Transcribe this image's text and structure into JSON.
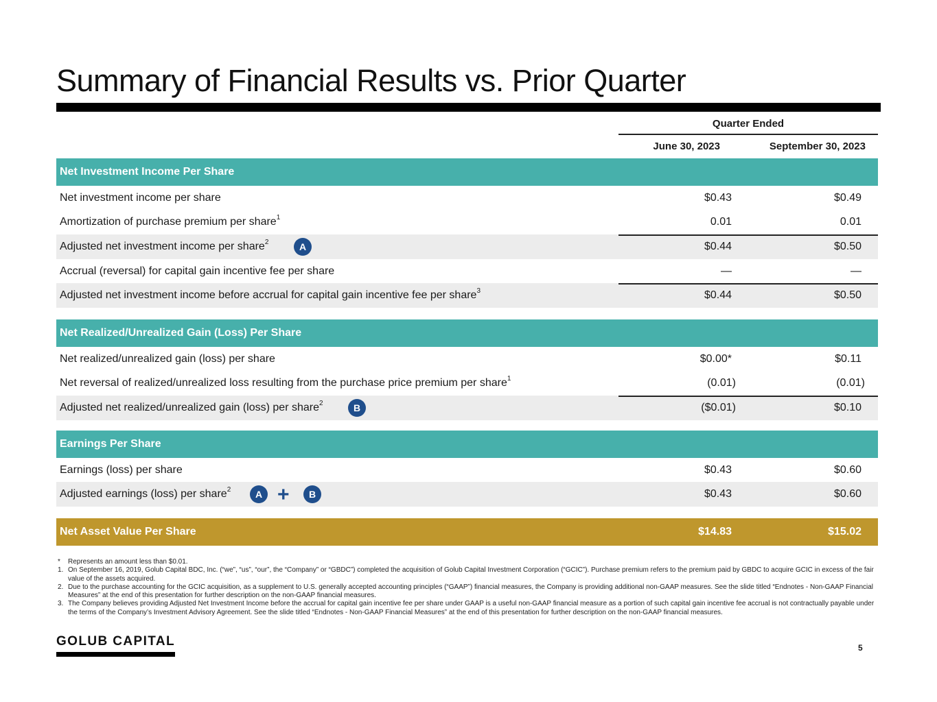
{
  "title": "Summary of Financial Results vs. Prior Quarter",
  "table": {
    "group_header": "Quarter Ended",
    "columns": [
      "June 30, 2023",
      "September 30, 2023"
    ]
  },
  "sections": [
    {
      "header": "Net Investment Income Per Share",
      "rows": [
        {
          "label": "Net investment income per share",
          "sup": "",
          "v1": "$0.43",
          "v2": "$0.49"
        },
        {
          "label": "Amortization of purchase premium per share",
          "sup": "1",
          "v1": "0.01",
          "v2": "0.01"
        },
        {
          "label": "Adjusted net investment income per share",
          "sup": "2",
          "v1": "$0.44",
          "v2": "$0.50"
        },
        {
          "label": "Accrual (reversal) for capital gain incentive fee per share",
          "sup": "",
          "v1": "—",
          "v2": "—"
        },
        {
          "label": "Adjusted net investment income before accrual for capital gain incentive fee per share",
          "sup": "3",
          "v1": "$0.44",
          "v2": "$0.50"
        }
      ]
    },
    {
      "header": "Net Realized/Unrealized Gain (Loss) Per Share",
      "rows": [
        {
          "label": "Net realized/unrealized gain (loss) per share",
          "sup": "",
          "v1": "$0.00*",
          "v2": "$0.11"
        },
        {
          "label": "Net reversal of realized/unrealized loss resulting from the purchase price premium per share",
          "sup": "1",
          "v1": "(0.01)",
          "v2": "(0.01)"
        },
        {
          "label": "Adjusted net realized/unrealized gain (loss) per share",
          "sup": "2",
          "v1": "($0.01)",
          "v2": "$0.10"
        }
      ]
    },
    {
      "header": "Earnings Per Share",
      "rows": [
        {
          "label": "Earnings (loss) per share",
          "sup": "",
          "v1": "$0.43",
          "v2": "$0.60"
        },
        {
          "label": "Adjusted earnings (loss) per share",
          "sup": "2",
          "v1": "$0.43",
          "v2": "$0.60"
        }
      ]
    }
  ],
  "nav": {
    "label": "Net Asset Value Per Share",
    "v1": "$14.83",
    "v2": "$15.02"
  },
  "badges": {
    "a": "A",
    "b": "B",
    "plus": "+"
  },
  "footnotes": [
    {
      "marker": "*",
      "text": "Represents an amount less than $0.01."
    },
    {
      "marker": "1.",
      "text": "On September 16, 2019, Golub Capital BDC, Inc. (“we”, “us”, “our”, the “Company” or “GBDC”) completed the acquisition of Golub Capital Investment Corporation (“GCIC”). Purchase premium refers to the premium paid by GBDC to acquire GCIC in excess of the fair value of the assets acquired."
    },
    {
      "marker": "2.",
      "text": "Due to the purchase accounting for the GCIC acquisition, as a supplement to U.S. generally accepted accounting principles (“GAAP”) financial measures, the Company is providing additional non-GAAP measures. See the slide titled “Endnotes - Non-GAAP Financial Measures” at the end of this presentation for further description on the non-GAAP financial measures."
    },
    {
      "marker": "3.",
      "text": "The Company believes providing Adjusted Net Investment Income before the accrual for capital gain incentive fee per share under GAAP is a useful non-GAAP financial measure as a portion of such capital gain incentive fee accrual is not contractually payable under the terms of the Company’s Investment Advisory Agreement. See the slide titled “Endnotes - Non-GAAP Financial Measures” at the end of this presentation for further description on the non-GAAP financial measures."
    }
  ],
  "logo": "GOLUB CAPITAL",
  "page_number": "5",
  "colors": {
    "teal": "#47b0ab",
    "gold": "#bf972d",
    "badge": "#1f4e8c"
  }
}
